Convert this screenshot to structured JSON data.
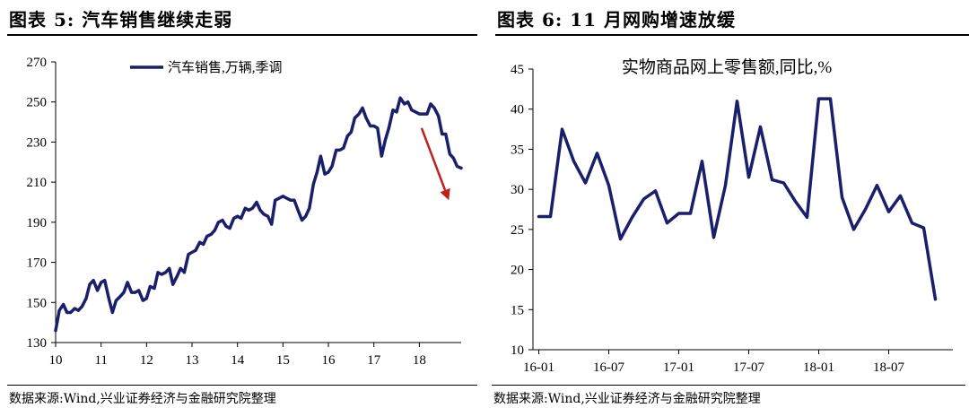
{
  "left_panel": {
    "title": "图表 5:  汽车销售继续走弱",
    "source": "数据来源:Wind,兴业证券经济与金融研究院整理"
  },
  "right_panel": {
    "title": "图表 6:  11 月网购增速放缓",
    "source": "数据来源:Wind,兴业证券经济与金融研究院整理"
  },
  "chart_data": [
    {
      "type": "line",
      "title": "",
      "xlabel": "",
      "ylabel": "",
      "ylim": [
        130,
        270
      ],
      "yticks": [
        "130",
        "150",
        "170",
        "190",
        "210",
        "230",
        "250",
        "270"
      ],
      "xticks": [
        "10",
        "11",
        "12",
        "13",
        "14",
        "15",
        "16",
        "17",
        "18"
      ],
      "xlim": [
        10,
        18.92
      ],
      "legend_position": "top",
      "grid": false,
      "annotation": "downward arrow (red)",
      "colors": {
        "line": "#1a1f6b",
        "arrow": "#c0201b"
      },
      "series": [
        {
          "name": "汽车销售,万辆,季调",
          "x": [
            10.0,
            10.08,
            10.17,
            10.25,
            10.33,
            10.42,
            10.5,
            10.58,
            10.67,
            10.75,
            10.83,
            10.92,
            11.0,
            11.08,
            11.17,
            11.25,
            11.33,
            11.42,
            11.5,
            11.58,
            11.67,
            11.75,
            11.83,
            11.92,
            12.0,
            12.08,
            12.17,
            12.25,
            12.33,
            12.42,
            12.5,
            12.58,
            12.67,
            12.75,
            12.83,
            12.92,
            13.0,
            13.08,
            13.17,
            13.25,
            13.33,
            13.42,
            13.5,
            13.58,
            13.67,
            13.75,
            13.83,
            13.92,
            14.0,
            14.08,
            14.17,
            14.25,
            14.33,
            14.42,
            14.5,
            14.58,
            14.67,
            14.75,
            14.83,
            14.92,
            15.0,
            15.08,
            15.17,
            15.25,
            15.33,
            15.42,
            15.5,
            15.58,
            15.67,
            15.75,
            15.83,
            15.92,
            16.0,
            16.08,
            16.17,
            16.25,
            16.33,
            16.42,
            16.5,
            16.58,
            16.67,
            16.75,
            16.83,
            16.92,
            17.0,
            17.08,
            17.17,
            17.25,
            17.33,
            17.42,
            17.5,
            17.58,
            17.67,
            17.75,
            17.83,
            17.92,
            18.0,
            18.08,
            18.17,
            18.25,
            18.33,
            18.42,
            18.5,
            18.58,
            18.67,
            18.75,
            18.83,
            18.92
          ],
          "values": [
            136,
            146,
            149,
            145,
            145,
            147,
            146,
            148,
            152,
            159,
            161,
            156,
            160,
            161,
            152,
            145,
            151,
            153,
            155,
            160,
            155,
            155,
            156,
            151,
            152,
            158,
            157,
            165,
            164,
            165,
            167,
            159,
            163,
            167,
            165,
            174,
            175,
            176,
            180,
            179,
            183,
            184,
            186,
            190,
            191,
            188,
            187,
            192,
            193,
            192,
            197,
            196,
            197,
            200,
            196,
            194,
            193,
            189,
            201,
            202,
            203,
            202,
            201,
            201,
            196,
            191,
            193,
            197,
            209,
            215,
            223,
            214,
            215,
            218,
            226,
            226,
            227,
            233,
            235,
            242,
            244,
            247,
            242,
            238,
            238,
            237,
            223,
            231,
            237,
            246,
            245,
            252,
            249,
            250,
            246,
            245,
            244,
            244,
            244,
            249,
            247,
            243,
            234,
            234,
            224,
            222,
            218,
            217
          ]
        }
      ]
    },
    {
      "type": "line",
      "title": "实物商品网上零售额,同比,%",
      "xlabel": "",
      "ylabel": "",
      "ylim": [
        10,
        45
      ],
      "yticks": [
        "10",
        "15",
        "20",
        "25",
        "30",
        "35",
        "40",
        "45"
      ],
      "xticks": [
        "16-01",
        "16-07",
        "17-01",
        "17-07",
        "18-01",
        "18-07"
      ],
      "xtick_positions": [
        0,
        6,
        12,
        18,
        24,
        30
      ],
      "xlim": [
        -0.5,
        35.5
      ],
      "grid": false,
      "colors": {
        "line": "#1a1f6b"
      },
      "series": [
        {
          "name": "",
          "x": [
            0,
            1,
            2,
            3,
            4,
            5,
            6,
            7,
            8,
            9,
            10,
            11,
            12,
            13,
            14,
            15,
            16,
            17,
            18,
            19,
            20,
            21,
            22,
            23,
            24,
            25,
            26,
            27,
            28,
            29,
            30,
            31,
            32,
            33,
            34
          ],
          "values": [
            26.6,
            26.6,
            37.5,
            33.5,
            30.8,
            34.5,
            30.5,
            23.8,
            26.5,
            28.8,
            29.8,
            25.8,
            27.0,
            27.0,
            33.5,
            24.0,
            30.5,
            41.0,
            31.5,
            37.8,
            31.2,
            30.8,
            28.5,
            26.5,
            41.3,
            41.3,
            29.0,
            25.0,
            27.5,
            30.5,
            27.2,
            29.2,
            25.8,
            25.2,
            16.3
          ]
        }
      ]
    }
  ]
}
